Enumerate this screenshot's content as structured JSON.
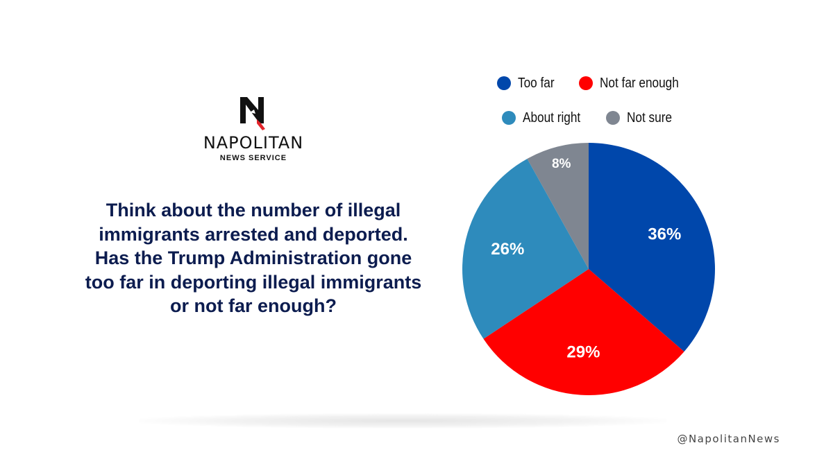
{
  "logo": {
    "wordmark": "NAPOLITAN",
    "subtitle": "NEWS SERVICE",
    "mark_colors": {
      "primary": "#111111",
      "accent": "#e3242b"
    }
  },
  "question": "Think about the number of illegal immigrants arrested and deported. Has the Trump Administration gone too far in deporting illegal immigrants or not far enough?",
  "handle": "@NapolitanNews",
  "chart_data": {
    "type": "pie",
    "title": "",
    "legend_placement": "top",
    "start_angle_deg": 0,
    "direction": "clockwise",
    "series": [
      {
        "name": "Too far",
        "value": 36,
        "label": "36%",
        "color": "#0047ab"
      },
      {
        "name": "Not far enough",
        "value": 29,
        "label": "29%",
        "color": "#ff0000"
      },
      {
        "name": "About right",
        "value": 26,
        "label": "26%",
        "color": "#2e8bbc"
      },
      {
        "name": "Not sure",
        "value": 8,
        "label": "8%",
        "color": "#7f8691"
      }
    ]
  }
}
